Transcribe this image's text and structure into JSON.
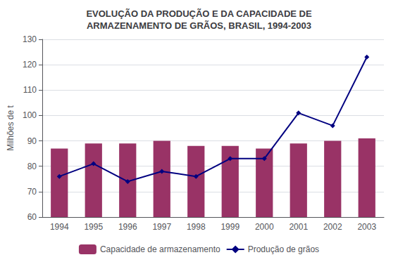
{
  "chart_data": {
    "type": "bar",
    "title": "EVOLUÇÃO DA PRODUÇÃO E DA CAPACIDADE DE\nARMAZENAMENTO DE GRÃOS, BRASIL, 1994-2003",
    "ylabel": "Milhões de t",
    "categories": [
      "1994",
      "1995",
      "1996",
      "1997",
      "1998",
      "1999",
      "2000",
      "2001",
      "2002",
      "2003"
    ],
    "series": [
      {
        "name": "Capacidade de armazenamento",
        "type": "bar",
        "color": "#993366",
        "values": [
          87,
          89,
          89,
          90,
          88,
          88,
          87,
          89,
          90,
          91
        ]
      },
      {
        "name": "Produção de grãos",
        "type": "line",
        "color": "#000080",
        "marker": "diamond",
        "values": [
          76,
          81,
          74,
          78,
          76,
          83,
          83,
          101,
          96,
          123
        ]
      }
    ],
    "ylim": [
      60,
      130
    ],
    "yticks": [
      60,
      70,
      80,
      90,
      100,
      110,
      120,
      130
    ],
    "grid": true,
    "legend": "bottom"
  }
}
